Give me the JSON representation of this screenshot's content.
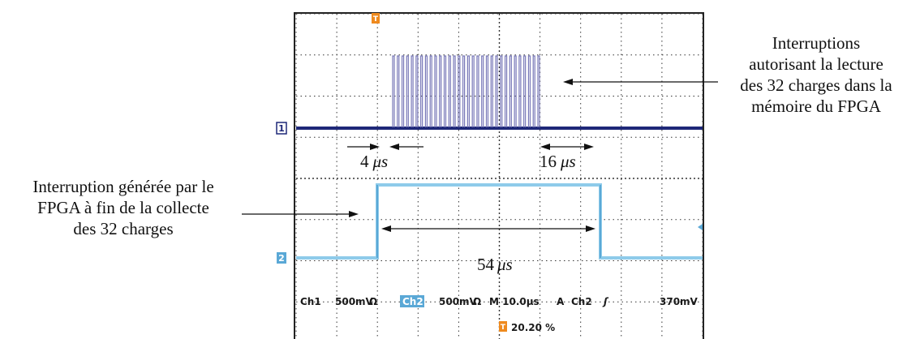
{
  "colors": {
    "ch1": "#7878b8",
    "ch1_baseline": "#1e2878",
    "ch2": "#8ecbea",
    "ch2_dark": "#5aa8d6",
    "grid": "#333333",
    "trigger": "#ef8a1e"
  },
  "annotations": {
    "top_right": [
      "Interruptions",
      "autorisant la lecture",
      "des 32 charges dans la",
      "mémoire du FPGA"
    ],
    "left": [
      "Interruption générée par le",
      "FPGA à fin de la collecte",
      "des 32 charges"
    ]
  },
  "durations": {
    "d1": {
      "value": "4",
      "unit": "μs"
    },
    "d2": {
      "value": "16",
      "unit": "μs"
    },
    "d3": {
      "value": "54",
      "unit": "μs"
    }
  },
  "scope": {
    "ch1_marker": "1",
    "ch2_marker": "2",
    "trigger_marker": "T",
    "ch1_label": "Ch1",
    "ch1_scale": "500mV",
    "ch2_label": "Ch2",
    "ch2_scale": "500mV",
    "ohm": "Ω",
    "timebase": "M 10.0μs",
    "trig_mode": "A",
    "trig_source": "Ch2",
    "trig_slope": "ʃ",
    "trig_level": "370mV",
    "trig_position": "20.20 %"
  },
  "signals": {
    "ch1_pulse_count": 32
  }
}
